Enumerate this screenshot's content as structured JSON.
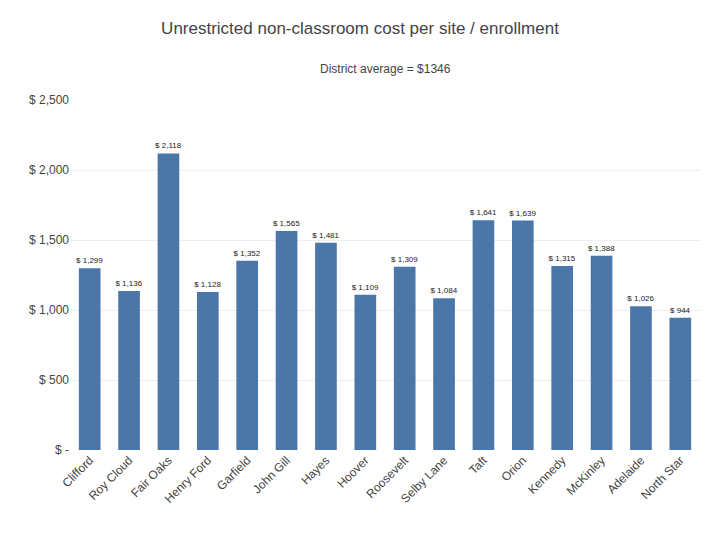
{
  "chart_data": {
    "type": "bar",
    "title": "Unrestricted non-classroom cost per site / enrollment",
    "subtitle": "District average = $1346",
    "categories": [
      "Clifford",
      "Roy Cloud",
      "Fair Oaks",
      "Henry Ford",
      "Garfield",
      "John Gill",
      "Hayes",
      "Hoover",
      "Roosevelt",
      "Selby Lane",
      "Taft",
      "Orion",
      "Kennedy",
      "McKinley",
      "Adelaide",
      "North Star"
    ],
    "values": [
      1299,
      1136,
      2118,
      1128,
      1352,
      1565,
      1481,
      1109,
      1309,
      1084,
      1641,
      1639,
      1315,
      1388,
      1026,
      944
    ],
    "value_labels": [
      "$ 1,299",
      "$ 1,136",
      "$ 2,118",
      "$ 1,128",
      "$ 1,352",
      "$ 1,565",
      "$ 1,481",
      "$ 1,109",
      "$ 1,309",
      "$ 1,084",
      "$ 1,641",
      "$ 1,639",
      "$ 1,315",
      "$ 1,388",
      "$ 1,026",
      "$ 944"
    ],
    "color": "#4a76a8",
    "ylim": [
      0,
      2500
    ],
    "yticks": [
      {
        "value": 0,
        "label": "$ -"
      },
      {
        "value": 500,
        "label": "$ 500"
      },
      {
        "value": 1000,
        "label": "$ 1,000"
      },
      {
        "value": 1500,
        "label": "$ 1,500"
      },
      {
        "value": 2000,
        "label": "$ 2,000"
      },
      {
        "value": 2500,
        "label": "$ 2,500"
      }
    ],
    "grid": true,
    "data_labels": true
  }
}
